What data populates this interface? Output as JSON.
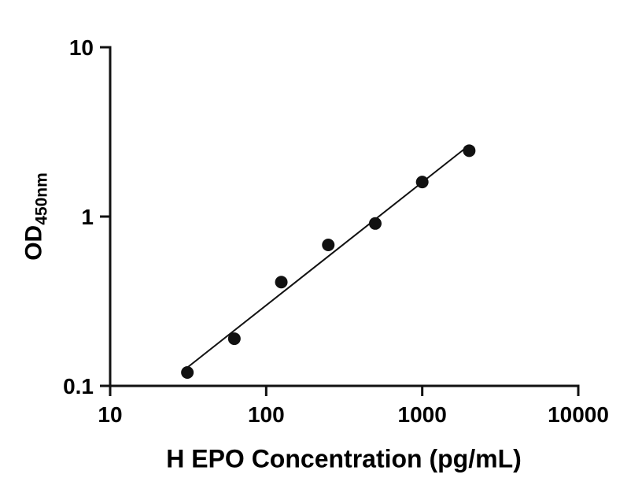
{
  "chart_data": {
    "type": "scatter",
    "title": "",
    "xlabel": "H EPO Concentration (pg/mL)",
    "ylabel": "OD",
    "ylabel_sub": "450nm",
    "x": [
      31.25,
      62.5,
      125,
      250,
      500,
      1000,
      2000
    ],
    "y": [
      0.12,
      0.19,
      0.41,
      0.68,
      0.91,
      1.6,
      2.45
    ],
    "x_scale": "log",
    "y_scale": "log",
    "xlim": [
      10,
      10000
    ],
    "ylim": [
      0.1,
      10
    ],
    "x_ticks": [
      10,
      100,
      1000,
      10000
    ],
    "x_tick_labels": [
      "10",
      "100",
      "1000",
      "10000"
    ],
    "y_ticks": [
      0.1,
      1,
      10
    ],
    "y_tick_labels": [
      "0.1",
      "1",
      "10"
    ],
    "grid": false,
    "legend": false,
    "trendline": true,
    "marker_color": "#111111",
    "line_color": "#111111",
    "axis_color": "#111111",
    "background_color": "#ffffff"
  }
}
